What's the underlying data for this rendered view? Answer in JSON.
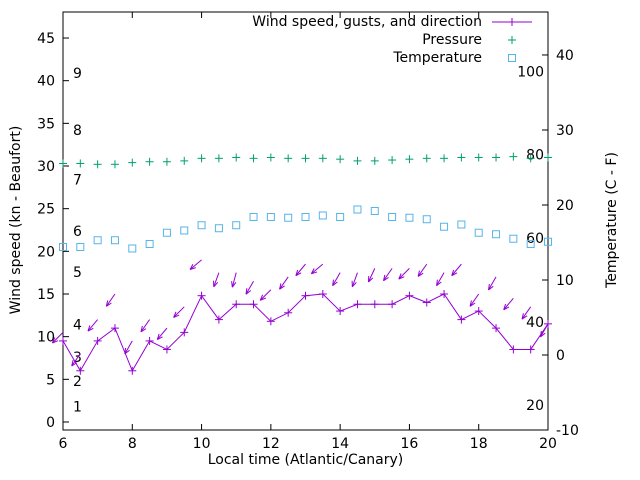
{
  "chart_data": {
    "type": "line",
    "title": "",
    "xlabel": "Local time (Atlantic/Canary)",
    "ylabel_left": "Wind speed (kn - Beaufort)",
    "ylabel_right": "Temperature (C - F)",
    "xlim": [
      6,
      20
    ],
    "x_ticks": [
      6,
      8,
      10,
      12,
      14,
      16,
      18,
      20
    ],
    "ylim_left": [
      -0.94,
      48.05
    ],
    "yticks_left": [
      0,
      5,
      10,
      15,
      20,
      25,
      30,
      35,
      40,
      45
    ],
    "ylim_right": [
      -10,
      45.73
    ],
    "yticks_right": [
      -10,
      0,
      10,
      20,
      30,
      40
    ],
    "grid": false,
    "legend_position": "top-right-inside",
    "beaufort_labels": [
      {
        "label": "1",
        "kn": 1.8
      },
      {
        "label": "2",
        "kn": 4.8
      },
      {
        "label": "3",
        "kn": 7.6
      },
      {
        "label": "4",
        "kn": 11.4
      },
      {
        "label": "5",
        "kn": 17.6
      },
      {
        "label": "6",
        "kn": 22.4
      },
      {
        "label": "7",
        "kn": 28.4
      },
      {
        "label": "8",
        "kn": 34.2
      },
      {
        "label": "9",
        "kn": 40.9
      }
    ],
    "fahrenheit_labels": [
      {
        "label": "20",
        "c": -6.7
      },
      {
        "label": "40",
        "c": 4.4
      },
      {
        "label": "60",
        "c": 15.6
      },
      {
        "label": "80",
        "c": 26.7
      },
      {
        "label": "100",
        "c": 37.8
      }
    ],
    "legend": [
      {
        "label": "Wind speed, gusts, and direction",
        "marker": "line-plus",
        "color": "#9400d3"
      },
      {
        "label": "Pressure",
        "marker": "plus",
        "color": "#009e73"
      },
      {
        "label": "Temperature",
        "marker": "square",
        "color": "#56b4e9"
      }
    ],
    "x": [
      6,
      6.5,
      7,
      7.5,
      8,
      8.5,
      9,
      9.5,
      10,
      10.5,
      11,
      11.5,
      12,
      12.5,
      13,
      13.5,
      14,
      14.5,
      15,
      15.5,
      16,
      16.5,
      17,
      17.5,
      18,
      18.5,
      19,
      19.5,
      20
    ],
    "series": [
      {
        "name": "temperature",
        "axis": "right",
        "style": "points",
        "marker": "square",
        "color": "#56b4e9",
        "values": [
          14.4,
          14.4,
          15.3,
          15.3,
          14.2,
          14.8,
          16.3,
          16.6,
          17.3,
          16.9,
          17.3,
          18.4,
          18.4,
          18.3,
          18.4,
          18.6,
          18.4,
          19.4,
          19.2,
          18.4,
          18.3,
          18.1,
          17.1,
          17.4,
          16.3,
          16.1,
          15.5,
          14.8,
          15.1
        ]
      },
      {
        "name": "pressure",
        "axis": "left",
        "style": "points",
        "marker": "plus",
        "color": "#009e73",
        "values": [
          30.3,
          30.3,
          30.2,
          30.2,
          30.4,
          30.5,
          30.5,
          30.6,
          30.9,
          30.9,
          31,
          30.9,
          31,
          30.9,
          30.9,
          30.9,
          30.8,
          30.6,
          30.6,
          30.7,
          30.8,
          30.9,
          30.9,
          31,
          31,
          31,
          31.1,
          30.9,
          31
        ]
      },
      {
        "name": "wind-speed",
        "axis": "left",
        "style": "linespoints",
        "marker": "plus",
        "color": "#9400d3",
        "values": [
          9.5,
          6,
          9.5,
          11,
          6,
          9.5,
          8.5,
          10.5,
          14.8,
          12,
          13.8,
          13.8,
          11.8,
          12.8,
          14.8,
          15,
          13,
          13.8,
          13.8,
          13.8,
          14.8,
          14,
          15,
          12,
          13,
          11,
          8.5,
          8.5,
          11.5
        ]
      },
      {
        "name": "gusts-direction",
        "axis": "left",
        "style": "arrows",
        "color": "#9400d3",
        "values": [
          10.5,
          8,
          12,
          15,
          9.5,
          12,
          11,
          13.5,
          19,
          17.5,
          17.5,
          16.5,
          15.5,
          17,
          18.5,
          18.5,
          17.5,
          17.5,
          18,
          18,
          18,
          18.5,
          17.5,
          18.5,
          15,
          17,
          14.5,
          13.5,
          11.5
        ],
        "directions": [
          225,
          215,
          220,
          215,
          210,
          215,
          220,
          225,
          230,
          200,
          195,
          210,
          225,
          215,
          220,
          230,
          210,
          200,
          205,
          215,
          225,
          215,
          210,
          220,
          215,
          210,
          220,
          215,
          210
        ]
      }
    ]
  }
}
